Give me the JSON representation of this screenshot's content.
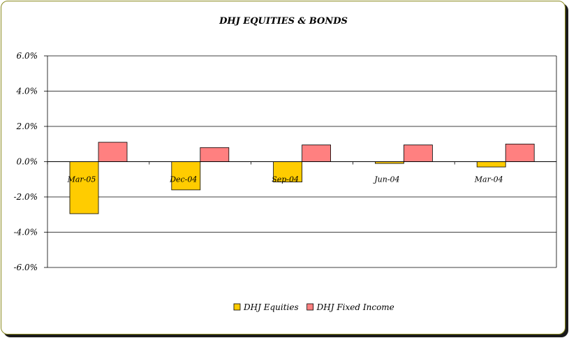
{
  "chart_data": {
    "type": "bar",
    "title": "DHJ EQUITIES & BONDS",
    "categories": [
      "Mar-05",
      "Dec-04",
      "Sep-04",
      "Jun-04",
      "Mar-04"
    ],
    "series": [
      {
        "name": "DHJ Equities",
        "color": "#FFCC00",
        "values": [
          -2.95,
          -1.6,
          -1.15,
          -0.1,
          -0.3
        ]
      },
      {
        "name": "DHJ Fixed Income",
        "color": "#FF8080",
        "values": [
          1.1,
          0.8,
          0.95,
          0.95,
          1.0
        ]
      }
    ],
    "y_ticks": [
      "6.0%",
      "4.0%",
      "2.0%",
      "0.0%",
      "-2.0%",
      "-4.0%",
      "-6.0%"
    ],
    "ylim": [
      -6,
      6
    ],
    "grid": true,
    "legend": "bottom"
  }
}
